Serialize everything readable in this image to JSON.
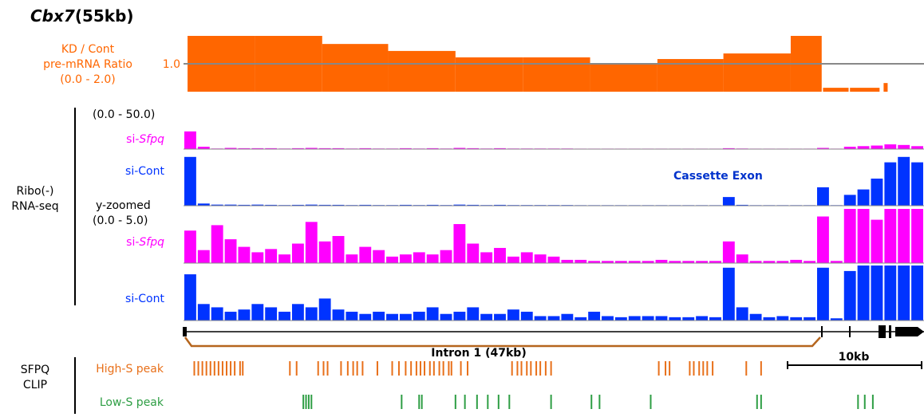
{
  "title": {
    "gene": "Cbx7",
    "size": "(55kb)"
  },
  "ratio_track": {
    "label_lines": [
      "KD / Cont",
      "pre-mRNA Ratio",
      "(0.0 - 2.0)"
    ],
    "color": "#ff6600",
    "ylim": [
      0,
      2
    ],
    "reference_tick": {
      "value": 1,
      "label": "1.0"
    },
    "bins": [
      [
        0.3,
        5.3
      ],
      [
        5.3,
        10.3
      ],
      [
        10.3,
        15.2
      ],
      [
        15.2,
        20.2
      ],
      [
        20.2,
        25.2
      ],
      [
        25.2,
        30.2
      ],
      [
        30.2,
        35.2
      ],
      [
        35.2,
        40.1
      ],
      [
        40.1,
        45.1
      ],
      [
        45.1,
        47.4
      ],
      [
        47.5,
        49.4
      ],
      [
        49.5,
        51.7
      ],
      [
        52.0,
        52.3
      ]
    ],
    "values": [
      2.0,
      2.0,
      1.71,
      1.46,
      1.23,
      1.23,
      1.0,
      1.17,
      1.37,
      2.0,
      0.14,
      0.14,
      0.31
    ]
  },
  "rnaseq_group": {
    "label_lines": [
      "Ribo(-)",
      "RNA-seq"
    ],
    "zoom_label": "y-zoomed",
    "tracks": [
      {
        "range": "(0.0 - 50.0)",
        "name": [
          "si-",
          "Sfpq"
        ],
        "color": "#ff00ff",
        "ylim": [
          0,
          50
        ],
        "values": [
          30,
          4,
          1,
          2,
          1.5,
          1.5,
          1.5,
          1,
          1.5,
          2,
          1.5,
          1.5,
          1,
          1.5,
          1,
          1,
          1.5,
          1,
          1.5,
          1,
          2,
          1.5,
          1,
          1.5,
          1,
          1,
          1,
          1,
          1,
          0.8,
          0.8,
          0.8,
          0.8,
          0.8,
          0.8,
          0.8,
          0.8,
          0.8,
          0.8,
          0.8,
          1.5,
          1,
          0.8,
          0.8,
          0.8,
          0.8,
          0.8,
          2,
          0.8,
          4,
          5,
          6,
          8,
          7,
          5
        ]
      },
      {
        "name": [
          "si-Cont"
        ],
        "color": "#0033ff",
        "ylim": [
          0,
          50
        ],
        "values": [
          45,
          2,
          1,
          1,
          0.8,
          1,
          0.8,
          0.6,
          0.8,
          1,
          0.8,
          0.8,
          0.6,
          0.8,
          0.6,
          0.6,
          0.8,
          0.6,
          0.8,
          0.6,
          1,
          0.8,
          0.6,
          0.8,
          0.6,
          0.6,
          0.6,
          0.6,
          0.6,
          0.5,
          0.5,
          0.5,
          0.5,
          0.5,
          0.5,
          0.5,
          0.5,
          0.5,
          0.5,
          0.5,
          8,
          0.8,
          0.5,
          0.5,
          0.5,
          0.5,
          0.5,
          17,
          0.5,
          10,
          15,
          25,
          40,
          45,
          40
        ]
      },
      {
        "range": "(0.0 - 5.0)",
        "name": [
          "si-",
          "Sfpq"
        ],
        "color": "#ff00ff",
        "ylim": [
          0,
          5
        ],
        "values": [
          3.0,
          1.2,
          3.5,
          2.2,
          1.5,
          1.0,
          1.3,
          0.8,
          1.8,
          3.8,
          2.0,
          2.5,
          0.8,
          1.5,
          1.2,
          0.6,
          0.8,
          1.0,
          0.8,
          1.2,
          3.6,
          1.8,
          1.0,
          1.4,
          0.6,
          1.0,
          0.8,
          0.6,
          0.3,
          0.3,
          0.2,
          0.2,
          0.2,
          0.2,
          0.2,
          0.3,
          0.2,
          0.2,
          0.2,
          0.2,
          2.0,
          0.8,
          0.2,
          0.2,
          0.2,
          0.3,
          0.2,
          4.3,
          0.2,
          5,
          5,
          4,
          5,
          5,
          5
        ]
      },
      {
        "name": [
          "si-Cont"
        ],
        "color": "#0033ff",
        "ylim": [
          0,
          5
        ],
        "values": [
          4.2,
          1.5,
          1.2,
          0.8,
          1.0,
          1.5,
          1.2,
          0.8,
          1.5,
          1.2,
          2.0,
          1.0,
          0.8,
          0.6,
          0.8,
          0.6,
          0.6,
          0.8,
          1.2,
          0.6,
          0.8,
          1.2,
          0.6,
          0.6,
          1.0,
          0.8,
          0.4,
          0.4,
          0.6,
          0.3,
          0.8,
          0.4,
          0.3,
          0.4,
          0.4,
          0.4,
          0.3,
          0.3,
          0.4,
          0.3,
          4.8,
          1.2,
          0.6,
          0.3,
          0.4,
          0.3,
          0.3,
          4.8,
          0.2,
          4.5,
          5,
          5,
          5,
          5,
          5
        ]
      }
    ]
  },
  "annotations": {
    "cassette_exon": "Cassette Exon",
    "intron": "Intron 1 (47kb)",
    "scale_bar": "10kb"
  },
  "clip": {
    "label_lines": [
      "SFPQ",
      "CLIP"
    ],
    "high": {
      "label": "High-S peak",
      "color": "#e8701a",
      "positions": [
        0.8,
        1.1,
        1.4,
        1.7,
        2.0,
        2.3,
        2.6,
        2.9,
        3.2,
        3.5,
        3.8,
        4.2,
        4.4,
        7.9,
        8.4,
        10.0,
        10.4,
        10.7,
        11.7,
        12.2,
        12.6,
        12.9,
        13.3,
        14.4,
        15.5,
        16.0,
        16.5,
        16.9,
        17.3,
        17.6,
        17.9,
        18.3,
        18.6,
        19.0,
        19.3,
        19.7,
        19.9,
        20.6,
        21.1,
        24.4,
        24.8,
        25.1,
        25.5,
        25.8,
        26.2,
        26.5,
        26.9,
        27.3,
        35.3,
        35.8,
        36.1,
        37.6,
        37.9,
        38.3,
        38.6,
        38.9,
        39.3,
        41.8,
        42.9
      ]
    },
    "low": {
      "label": "Low-S peak",
      "color": "#2e9e44",
      "positions": [
        8.9,
        9.1,
        9.3,
        9.5,
        16.2,
        17.5,
        17.7,
        20.2,
        20.9,
        21.8,
        22.6,
        23.4,
        24.2,
        27.3,
        30.3,
        30.9,
        34.7,
        42.6,
        42.9,
        50.1,
        50.6,
        51.2
      ]
    }
  }
}
